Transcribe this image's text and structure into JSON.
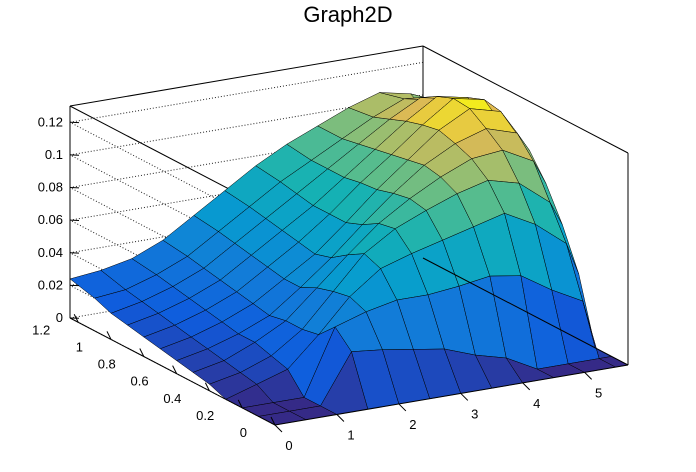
{
  "title": "Graph2D",
  "chart_data": {
    "type": "surface",
    "title": "Graph2D",
    "xlabel": "",
    "ylabel": "",
    "zlabel": "",
    "xlim": [
      0,
      5.7
    ],
    "ylim": [
      0,
      1.25
    ],
    "zlim": [
      0,
      0.13
    ],
    "x_ticks": [
      "0",
      "1",
      "2",
      "3",
      "4",
      "5"
    ],
    "y_ticks": [
      "0",
      "0.2",
      "0.4",
      "0.6",
      "0.8",
      "1",
      "1.2"
    ],
    "z_ticks": [
      "0",
      "0.02",
      "0.04",
      "0.06",
      "0.08",
      "0.1",
      "0.12"
    ],
    "x_tick_values": [
      0,
      1,
      2,
      3,
      4,
      5
    ],
    "y_tick_values": [
      0,
      0.2,
      0.4,
      0.6,
      0.8,
      1.0,
      1.2
    ],
    "z_tick_values": [
      0,
      0.02,
      0.04,
      0.06,
      0.08,
      0.1,
      0.12
    ],
    "x": [
      0,
      0.5,
      1.0,
      1.5,
      2.0,
      2.5,
      3.0,
      3.5,
      4.0,
      4.5,
      5.0,
      5.5,
      5.7
    ],
    "y": [
      0,
      0.1,
      0.2,
      0.3,
      0.4,
      0.5,
      0.6,
      0.7,
      0.8,
      0.9,
      1.0,
      1.1,
      1.25
    ],
    "z": [
      [
        0.0,
        0.0,
        0.0,
        0.0,
        0.0,
        0.0,
        0.0,
        0.0,
        0.0,
        0.0,
        0.0,
        0.0,
        0.0
      ],
      [
        0.0,
        0.0,
        0.0,
        0.03,
        0.028,
        0.025,
        0.022,
        0.015,
        0.01,
        0.0,
        0.0,
        0.0,
        0.0
      ],
      [
        0.0,
        0.0,
        0.0,
        0.04,
        0.046,
        0.05,
        0.05,
        0.052,
        0.055,
        0.052,
        0.04,
        0.03,
        0.0
      ],
      [
        0.0,
        0.006,
        0.012,
        0.03,
        0.05,
        0.064,
        0.07,
        0.075,
        0.08,
        0.085,
        0.075,
        0.06,
        0.04
      ],
      [
        0.004,
        0.008,
        0.015,
        0.028,
        0.048,
        0.068,
        0.08,
        0.088,
        0.095,
        0.1,
        0.095,
        0.08,
        0.065
      ],
      [
        0.006,
        0.01,
        0.018,
        0.028,
        0.045,
        0.062,
        0.078,
        0.09,
        0.1,
        0.108,
        0.11,
        0.1,
        0.085
      ],
      [
        0.008,
        0.012,
        0.018,
        0.026,
        0.04,
        0.055,
        0.072,
        0.088,
        0.102,
        0.112,
        0.118,
        0.112,
        0.1
      ],
      [
        0.01,
        0.014,
        0.02,
        0.028,
        0.04,
        0.052,
        0.068,
        0.085,
        0.1,
        0.115,
        0.125,
        0.12,
        0.108
      ],
      [
        0.012,
        0.016,
        0.022,
        0.03,
        0.042,
        0.054,
        0.068,
        0.084,
        0.098,
        0.113,
        0.126,
        0.122,
        0.11
      ],
      [
        0.014,
        0.018,
        0.024,
        0.032,
        0.044,
        0.056,
        0.068,
        0.082,
        0.096,
        0.11,
        0.122,
        0.118,
        0.106
      ],
      [
        0.016,
        0.02,
        0.026,
        0.034,
        0.046,
        0.058,
        0.07,
        0.082,
        0.094,
        0.106,
        0.116,
        0.112,
        0.1
      ],
      [
        0.02,
        0.022,
        0.028,
        0.036,
        0.048,
        0.06,
        0.072,
        0.082,
        0.092,
        0.102,
        0.11,
        0.106,
        0.095
      ],
      [
        0.024,
        0.026,
        0.03,
        0.038,
        0.05,
        0.062,
        0.074,
        0.084,
        0.092,
        0.1,
        0.106,
        0.102,
        0.092
      ]
    ],
    "colormap": "viridis-like",
    "grid": true
  }
}
